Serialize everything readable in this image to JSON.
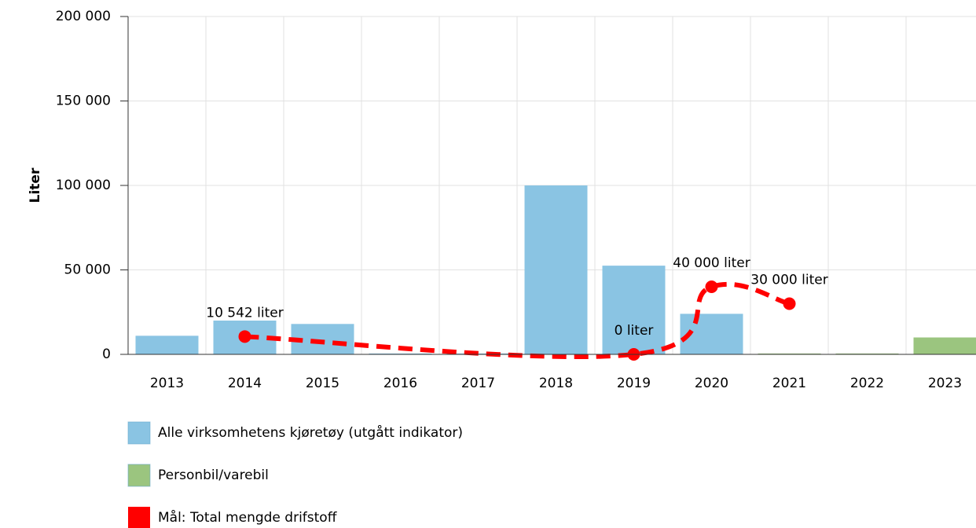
{
  "chart_data": {
    "type": "bar",
    "y_label": "Liter",
    "categories": [
      "2013",
      "2014",
      "2015",
      "2016",
      "2017",
      "2018",
      "2019",
      "2020",
      "2021",
      "2022",
      "2023"
    ],
    "ylim": [
      0,
      200000
    ],
    "yticks": [
      {
        "value": 0,
        "label": "0"
      },
      {
        "value": 50000,
        "label": "50 000"
      },
      {
        "value": 100000,
        "label": "100 000"
      },
      {
        "value": 150000,
        "label": "150 000"
      },
      {
        "value": 200000,
        "label": "200 000"
      }
    ],
    "grid": true,
    "legend": "bottom",
    "series": [
      {
        "name": "Alle virksomhetens kjøretøy (utgått indikator)",
        "type": "bar",
        "color": "#8ac4e3",
        "values": [
          11000,
          20000,
          18000,
          500,
          500,
          100000,
          52500,
          24000,
          null,
          null,
          null
        ]
      },
      {
        "name": "Personbil/varebil",
        "type": "bar",
        "color": "#9bc57f",
        "values": [
          null,
          null,
          null,
          null,
          null,
          null,
          null,
          null,
          500,
          500,
          10000
        ]
      },
      {
        "name": "Mål: Total mengde drifstoff",
        "type": "line",
        "color": "#ff0000",
        "x": [
          "2014",
          "2019",
          "2020",
          "2021"
        ],
        "values": [
          10542,
          0,
          40000,
          30000
        ],
        "value_labels": [
          "10 542 liter",
          "0 liter",
          "40 000 liter",
          "30 000 liter"
        ]
      }
    ]
  }
}
